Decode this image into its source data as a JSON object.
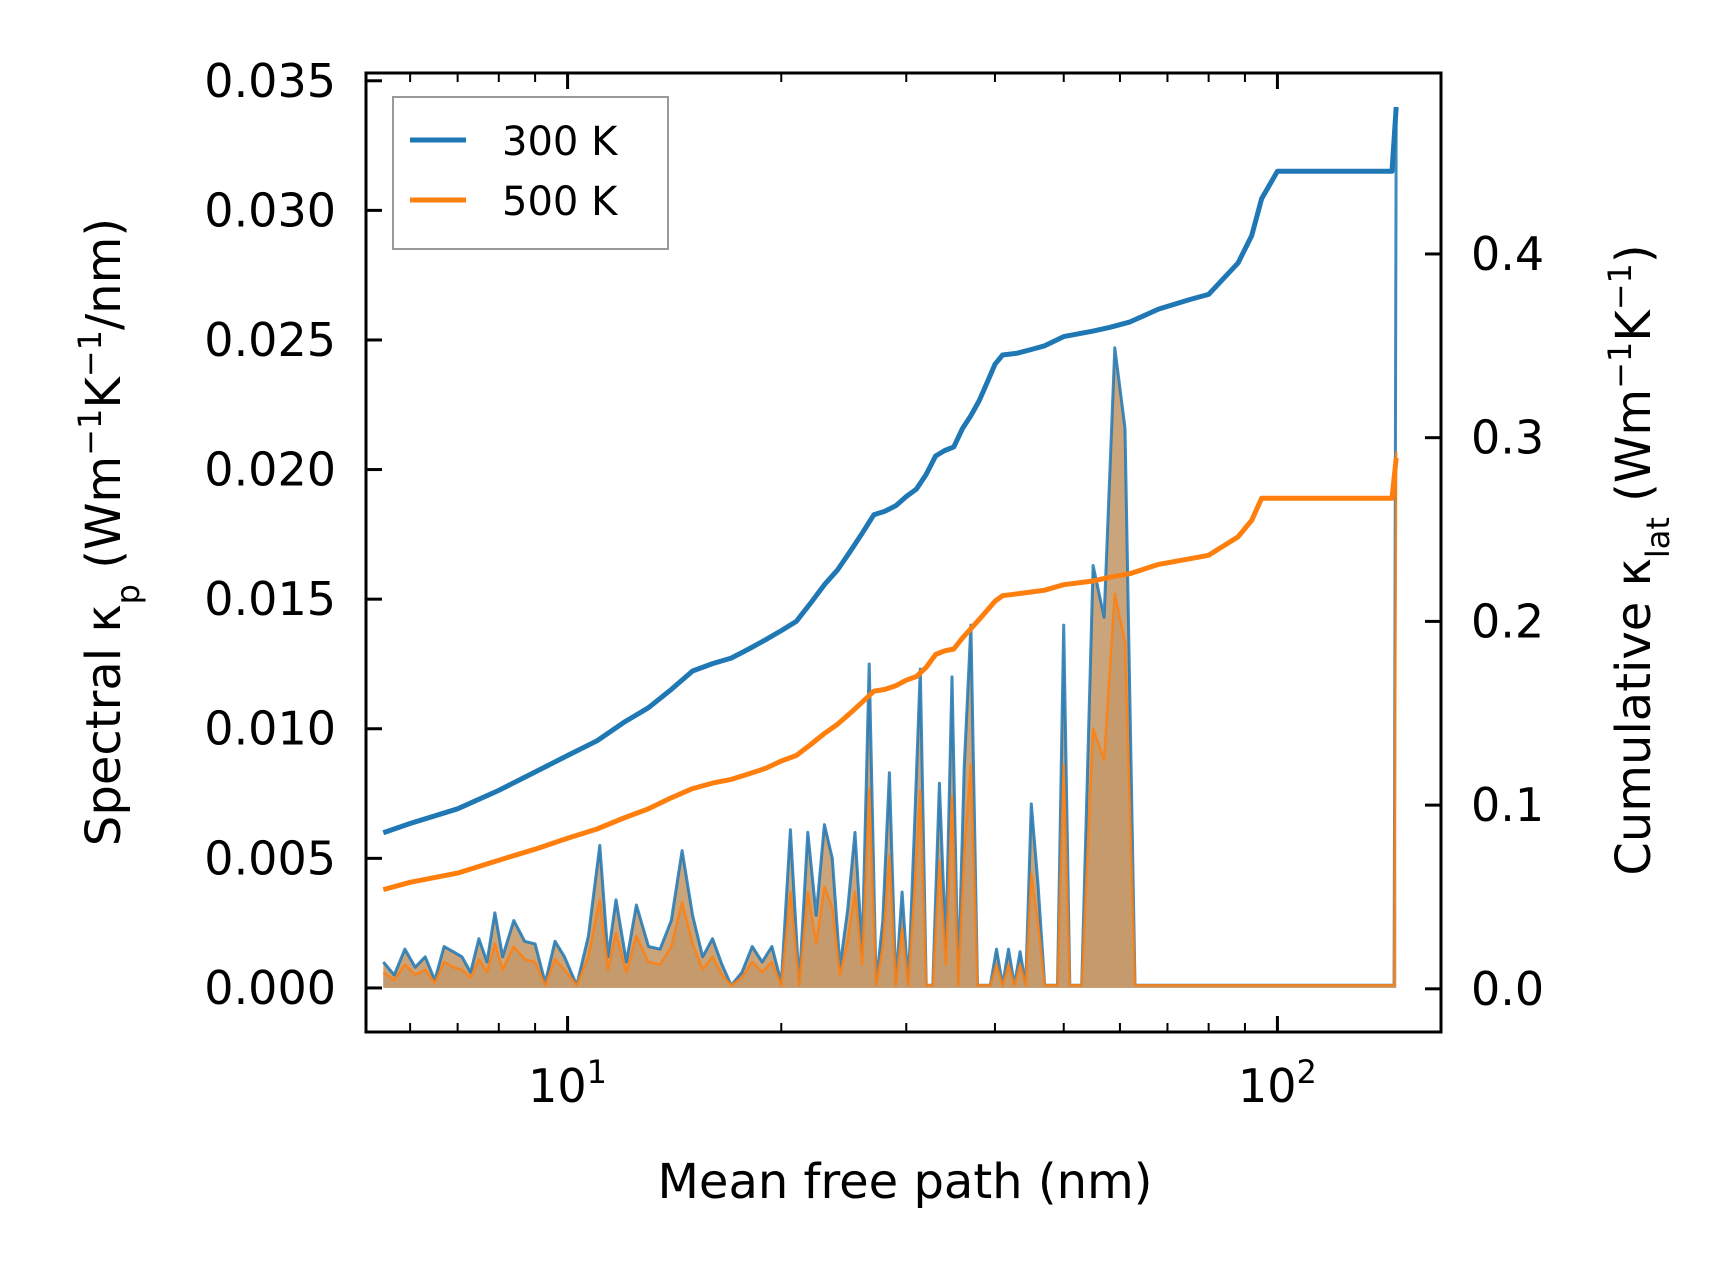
{
  "chart_data": {
    "type": "line",
    "xlabel": "Mean free path (nm)",
    "ylabel": {
      "main": "Spectral κ",
      "sub": "p",
      "unit_open": " (Wm",
      "sup1": "−1",
      "mid": "K",
      "sup2": "−1",
      "unit_close": "/nm)"
    },
    "y2label": {
      "main": "Cumulative κ",
      "sub": "lat",
      "unit_open": " (Wm",
      "sup1": "−1",
      "mid": "K",
      "sup2": "−1",
      "unit_close": ")"
    },
    "x_scale": "log",
    "xlim": [
      5.2,
      170
    ],
    "ylim": [
      -0.0017,
      0.0353
    ],
    "y2lim": [
      -0.0235,
      0.4985
    ],
    "x_ticks": [
      {
        "value": 10,
        "base": "10",
        "exp": "1"
      },
      {
        "value": 100,
        "base": "10",
        "exp": "2"
      }
    ],
    "y_ticks": [
      {
        "value": 0.0,
        "label": "0.000"
      },
      {
        "value": 0.005,
        "label": "0.005"
      },
      {
        "value": 0.01,
        "label": "0.010"
      },
      {
        "value": 0.015,
        "label": "0.015"
      },
      {
        "value": 0.02,
        "label": "0.020"
      },
      {
        "value": 0.025,
        "label": "0.025"
      },
      {
        "value": 0.03,
        "label": "0.030"
      },
      {
        "value": 0.035,
        "label": "0.035"
      }
    ],
    "y2_ticks": [
      {
        "value": 0.0,
        "label": "0.0"
      },
      {
        "value": 0.1,
        "label": "0.1"
      },
      {
        "value": 0.2,
        "label": "0.2"
      },
      {
        "value": 0.3,
        "label": "0.3"
      },
      {
        "value": 0.4,
        "label": "0.4"
      }
    ],
    "legend": {
      "position": "top-left",
      "entries": [
        "300 K",
        "500 K"
      ]
    },
    "colors": {
      "300 K": "#1f77b4",
      "500 K": "#ff7f0e",
      "fill": "#c49a6c"
    },
    "series": [
      {
        "name": "300 K",
        "axis": "right",
        "kind": "cumulative",
        "color": "#1f77b4",
        "x": [
          5.5,
          6,
          7,
          8,
          9,
          10,
          11,
          12,
          13,
          14,
          15,
          16,
          17,
          18,
          19,
          20,
          21,
          22,
          23,
          24,
          25,
          26,
          27,
          28,
          29,
          30,
          31,
          32,
          33,
          34,
          35,
          36,
          37,
          38,
          39,
          40,
          41,
          43,
          45,
          47,
          50,
          55,
          58,
          62,
          68,
          75,
          80,
          88,
          92,
          95,
          100,
          145,
          147
        ],
        "y": [
          0.085,
          0.09,
          0.098,
          0.108,
          0.118,
          0.127,
          0.135,
          0.145,
          0.153,
          0.163,
          0.173,
          0.177,
          0.18,
          0.185,
          0.19,
          0.195,
          0.2,
          0.21,
          0.22,
          0.228,
          0.238,
          0.248,
          0.258,
          0.26,
          0.263,
          0.268,
          0.272,
          0.28,
          0.29,
          0.293,
          0.295,
          0.305,
          0.312,
          0.32,
          0.33,
          0.34,
          0.345,
          0.346,
          0.348,
          0.35,
          0.355,
          0.358,
          0.36,
          0.363,
          0.37,
          0.375,
          0.378,
          0.395,
          0.41,
          0.43,
          0.445,
          0.445,
          0.48
        ]
      },
      {
        "name": "500 K",
        "axis": "right",
        "kind": "cumulative",
        "color": "#ff7f0e",
        "x": [
          5.5,
          6,
          7,
          8,
          9,
          10,
          11,
          12,
          13,
          14,
          15,
          16,
          17,
          18,
          19,
          20,
          21,
          22,
          23,
          24,
          25,
          26,
          27,
          28,
          29,
          30,
          31,
          32,
          33,
          34,
          35,
          36,
          37,
          38,
          39,
          40,
          41,
          43,
          45,
          47,
          50,
          55,
          58,
          62,
          68,
          75,
          80,
          88,
          92,
          95,
          100,
          145,
          147
        ],
        "y": [
          0.054,
          0.058,
          0.063,
          0.07,
          0.076,
          0.082,
          0.087,
          0.093,
          0.098,
          0.104,
          0.109,
          0.112,
          0.114,
          0.117,
          0.12,
          0.124,
          0.127,
          0.133,
          0.139,
          0.144,
          0.15,
          0.156,
          0.162,
          0.163,
          0.165,
          0.168,
          0.17,
          0.175,
          0.182,
          0.184,
          0.185,
          0.191,
          0.196,
          0.201,
          0.206,
          0.211,
          0.214,
          0.215,
          0.216,
          0.217,
          0.22,
          0.222,
          0.224,
          0.226,
          0.231,
          0.234,
          0.236,
          0.246,
          0.255,
          0.267,
          0.267,
          0.267,
          0.289
        ]
      },
      {
        "name": "300 K spectral",
        "axis": "left",
        "kind": "spectral",
        "color": "#1f77b4",
        "x": [
          5.5,
          5.7,
          5.9,
          6.1,
          6.3,
          6.5,
          6.7,
          6.9,
          7.1,
          7.3,
          7.5,
          7.7,
          7.9,
          8.1,
          8.4,
          8.7,
          9.0,
          9.3,
          9.6,
          9.9,
          10.3,
          10.7,
          11.1,
          11.4,
          11.7,
          12.1,
          12.5,
          13.0,
          13.5,
          14.0,
          14.5,
          15.0,
          15.5,
          16.0,
          16.5,
          17.0,
          17.6,
          18.2,
          18.8,
          19.4,
          20.0,
          20.6,
          21.2,
          21.8,
          22.4,
          23.0,
          23.6,
          24.2,
          24.8,
          25.4,
          26.0,
          26.6,
          27.2,
          27.8,
          28.4,
          29.0,
          29.6,
          30.2,
          30.8,
          31.4,
          32.0,
          32.7,
          33.4,
          34.1,
          34.8,
          35.5,
          36.2,
          37.0,
          37.8,
          38.6,
          39.4,
          40.2,
          41.0,
          41.8,
          42.6,
          43.4,
          44.2,
          45.0,
          46.0,
          47.0,
          48.0,
          49.0,
          50.0,
          51.0,
          53.0,
          55.0,
          57.0,
          59.0,
          61.0,
          63.0,
          65.0,
          68.0,
          71.0,
          74.0,
          76.0,
          78.0,
          82.0,
          86.0,
          89.0,
          91.0,
          93.0,
          95.0,
          96.5,
          98.0,
          100.0,
          105.0,
          120.0,
          140.0,
          145.0,
          146.0,
          147.0
        ],
        "y": [
          0.001,
          0.0005,
          0.0015,
          0.0008,
          0.0012,
          0.0003,
          0.0016,
          0.0014,
          0.0012,
          0.0006,
          0.0019,
          0.001,
          0.0029,
          0.0012,
          0.0026,
          0.0018,
          0.0017,
          0.0002,
          0.0018,
          0.0012,
          0.0001,
          0.002,
          0.0055,
          0.0012,
          0.0034,
          0.001,
          0.0032,
          0.0016,
          0.0015,
          0.0026,
          0.0053,
          0.0028,
          0.0012,
          0.0019,
          0.0009,
          0.0001,
          0.0006,
          0.0016,
          0.001,
          0.0016,
          0.0002,
          0.0061,
          0.0001,
          0.006,
          0.0028,
          0.0063,
          0.005,
          0.0008,
          0.003,
          0.006,
          0.0014,
          0.0125,
          0.0001,
          0.0026,
          0.0083,
          0.0001,
          0.0037,
          0.0001,
          0.0061,
          0.0123,
          0.0001,
          0.0001,
          0.0079,
          0.0015,
          0.012,
          0.0001,
          0.0085,
          0.014,
          0.0001,
          0.0001,
          0.0001,
          0.0015,
          0.0001,
          0.0015,
          0.0001,
          0.0014,
          0.0001,
          0.0071,
          0.004,
          0.0001,
          0.0001,
          0.0001,
          0.014,
          0.0001,
          0.0001,
          0.0163,
          0.0143,
          0.0247,
          0.0216,
          0.0001,
          0.0001,
          0.0001,
          0.0001,
          0.0001,
          0.0001,
          0.0001,
          0.0001,
          0.0001,
          0.0001,
          0.0001,
          0.0001,
          0.0001,
          0.0001,
          0.0001,
          0.0001,
          0.0001,
          0.0001,
          0.0001,
          0.0001,
          0.0001,
          0.0336
        ]
      },
      {
        "name": "500 K spectral",
        "axis": "left",
        "kind": "spectral",
        "color": "#ff7f0e",
        "x": [
          5.5,
          5.7,
          5.9,
          6.1,
          6.3,
          6.5,
          6.7,
          6.9,
          7.1,
          7.3,
          7.5,
          7.7,
          7.9,
          8.1,
          8.4,
          8.7,
          9.0,
          9.3,
          9.6,
          9.9,
          10.3,
          10.7,
          11.1,
          11.4,
          11.7,
          12.1,
          12.5,
          13.0,
          13.5,
          14.0,
          14.5,
          15.0,
          15.5,
          16.0,
          16.5,
          17.0,
          17.6,
          18.2,
          18.8,
          19.4,
          20.0,
          20.6,
          21.2,
          21.8,
          22.4,
          23.0,
          23.6,
          24.2,
          24.8,
          25.4,
          26.0,
          26.6,
          27.2,
          27.8,
          28.4,
          29.0,
          29.6,
          30.2,
          30.8,
          31.4,
          32.0,
          32.7,
          33.4,
          34.1,
          34.8,
          35.5,
          36.2,
          37.0,
          37.8,
          38.6,
          39.4,
          40.2,
          41.0,
          41.8,
          42.6,
          43.4,
          44.2,
          45.0,
          46.0,
          47.0,
          48.0,
          49.0,
          50.0,
          51.0,
          53.0,
          55.0,
          57.0,
          59.0,
          61.0,
          63.0,
          65.0,
          68.0,
          71.0,
          74.0,
          76.0,
          78.0,
          82.0,
          86.0,
          89.0,
          91.0,
          93.0,
          95.0,
          96.5,
          98.0,
          100.0,
          105.0,
          120.0,
          140.0,
          145.0,
          146.0,
          147.0
        ],
        "y": [
          0.0006,
          0.0003,
          0.0009,
          0.0005,
          0.0007,
          0.0002,
          0.001,
          0.0008,
          0.0007,
          0.0004,
          0.0011,
          0.0006,
          0.0017,
          0.0007,
          0.0016,
          0.0011,
          0.001,
          0.0001,
          0.0011,
          0.0007,
          0.0001,
          0.0012,
          0.0034,
          0.0007,
          0.0021,
          0.0006,
          0.002,
          0.001,
          0.0009,
          0.0016,
          0.0033,
          0.0017,
          0.0007,
          0.0012,
          0.0005,
          0.0001,
          0.0004,
          0.001,
          0.0006,
          0.001,
          0.0001,
          0.0037,
          0.0001,
          0.0037,
          0.0017,
          0.0039,
          0.0031,
          0.0005,
          0.0018,
          0.0037,
          0.0009,
          0.0077,
          0.0001,
          0.0016,
          0.0051,
          0.0001,
          0.0023,
          0.0001,
          0.0037,
          0.0076,
          0.0001,
          0.0001,
          0.0049,
          0.0009,
          0.0074,
          0.0001,
          0.0052,
          0.0086,
          0.0001,
          0.0001,
          0.0001,
          0.0009,
          0.0001,
          0.0009,
          0.0001,
          0.0009,
          0.0001,
          0.0044,
          0.0025,
          0.0001,
          0.0001,
          0.0001,
          0.0086,
          0.0001,
          0.0001,
          0.01,
          0.0088,
          0.0152,
          0.0133,
          0.0001,
          0.0001,
          0.0001,
          0.0001,
          0.0001,
          0.0001,
          0.0001,
          0.0001,
          0.0001,
          0.0001,
          0.0001,
          0.0001,
          0.0001,
          0.0001,
          0.0001,
          0.0001,
          0.0001,
          0.0001,
          0.0001,
          0.0001,
          0.0001,
          0.0207
        ]
      }
    ]
  }
}
